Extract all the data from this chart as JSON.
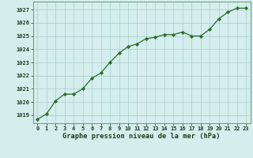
{
  "x": [
    0,
    1,
    2,
    3,
    4,
    5,
    6,
    7,
    8,
    9,
    10,
    11,
    12,
    13,
    14,
    15,
    16,
    17,
    18,
    19,
    20,
    21,
    22,
    23
  ],
  "y": [
    1018.7,
    1019.1,
    1020.1,
    1020.6,
    1020.6,
    1021.0,
    1021.8,
    1022.2,
    1023.0,
    1023.7,
    1024.2,
    1024.4,
    1024.8,
    1024.9,
    1025.1,
    1025.1,
    1025.3,
    1025.0,
    1025.0,
    1025.5,
    1026.3,
    1026.8,
    1027.1,
    1027.1
  ],
  "line_color": "#2d6a2d",
  "marker": "D",
  "marker_size": 2.2,
  "bg_color": "#d4eeed",
  "grid_color": "#aacccc",
  "xlabel": "Graphe pression niveau de la mer (hPa)",
  "xlabel_color": "#1a3a1a",
  "ylabel_ticks": [
    1019,
    1020,
    1021,
    1022,
    1023,
    1024,
    1025,
    1026,
    1027
  ],
  "xlim": [
    -0.5,
    23.5
  ],
  "ylim": [
    1018.4,
    1027.6
  ],
  "tick_color": "#1a3a1a",
  "spine_color": "#5a8a5a",
  "tick_fontsize": 5.0,
  "xlabel_fontsize": 6.2,
  "linewidth": 0.9
}
